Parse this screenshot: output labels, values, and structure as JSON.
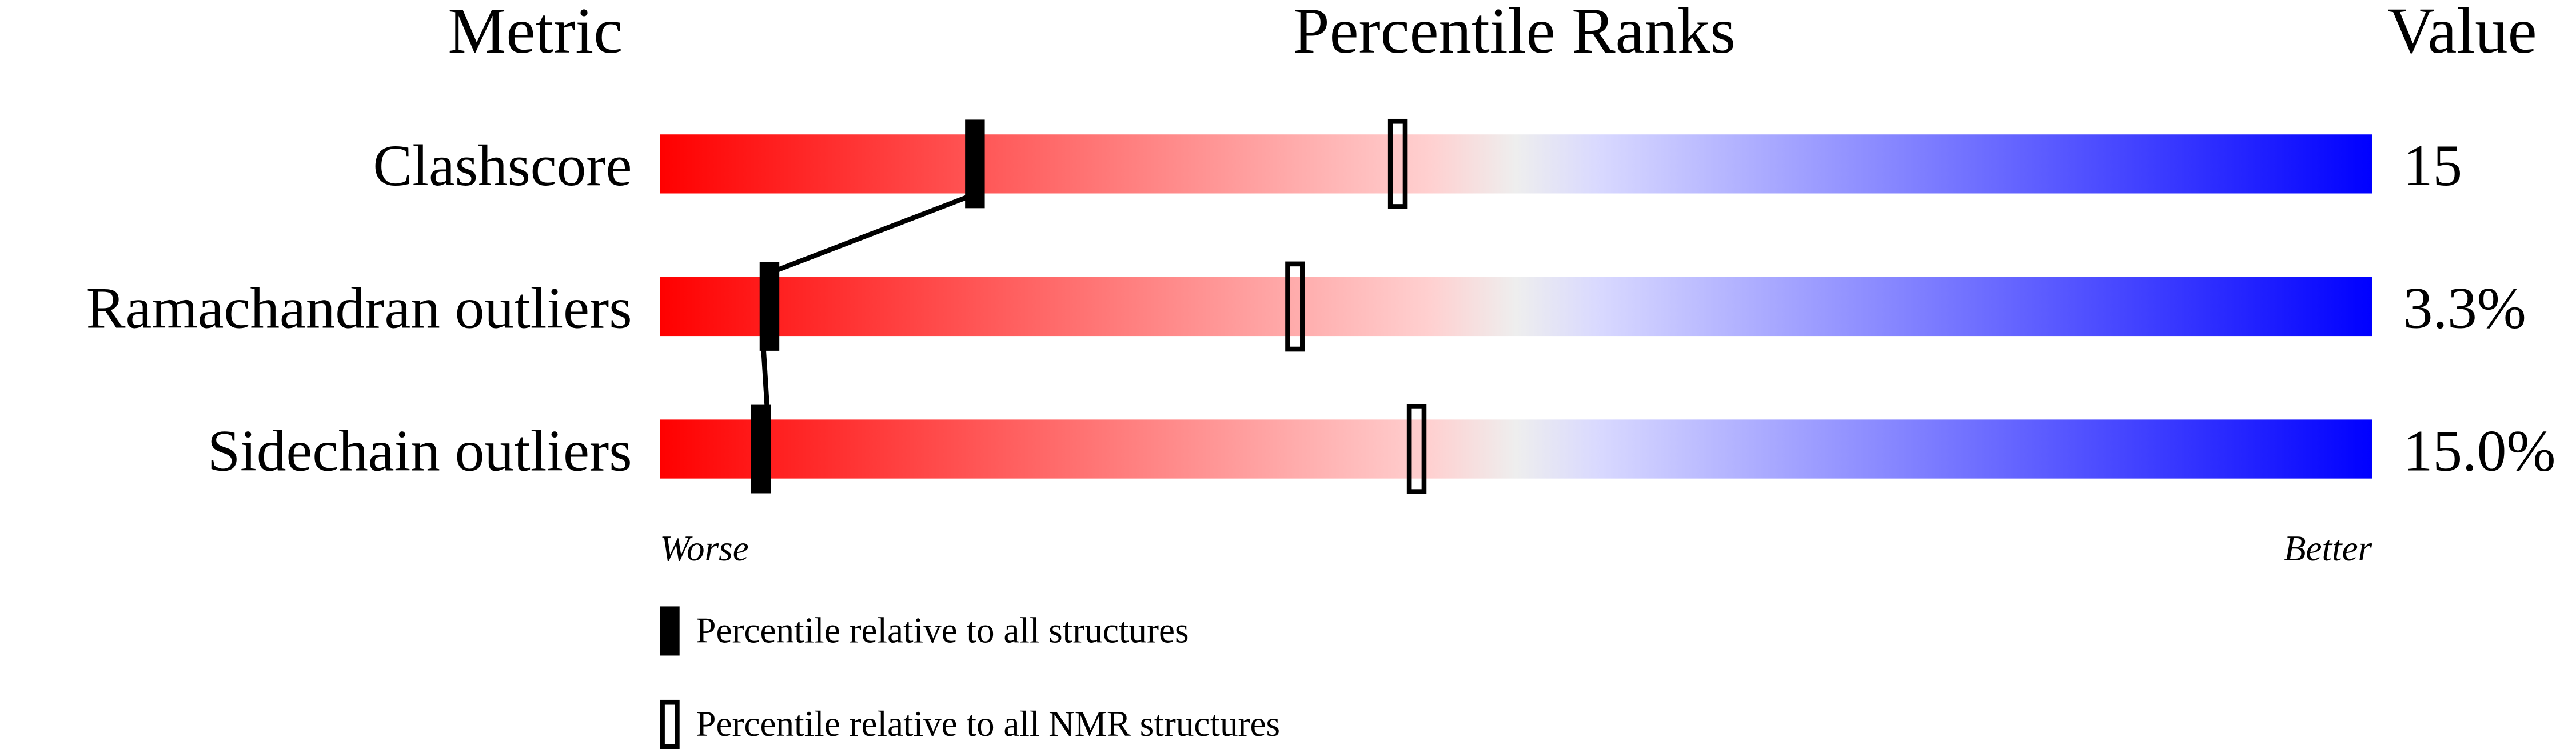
{
  "chart_data": {
    "type": "bar",
    "title": "Percentile Ranks",
    "column_headers": {
      "metric": "Metric",
      "ranks": "Percentile Ranks",
      "value": "Value"
    },
    "xlim": [
      0,
      100
    ],
    "axis_labels": {
      "left": "Worse",
      "right": "Better"
    },
    "gradient_colors": [
      "#ff0000",
      "#ffd0d0",
      "#eeeeee",
      "#d8d8ff",
      "#0000ff"
    ],
    "rows": [
      {
        "metric": "Clashscore",
        "value": "15",
        "percentile_all": 18.4,
        "percentile_nmr": 43.1
      },
      {
        "metric": "Ramachandran outliers",
        "value": "3.3%",
        "percentile_all": 6.4,
        "percentile_nmr": 37.1
      },
      {
        "metric": "Sidechain outliers",
        "value": "15.0%",
        "percentile_all": 5.9,
        "percentile_nmr": 44.2
      }
    ],
    "legend": [
      {
        "marker": "filled",
        "label": "Percentile relative to all structures"
      },
      {
        "marker": "open",
        "label": "Percentile relative to all NMR structures"
      }
    ]
  }
}
